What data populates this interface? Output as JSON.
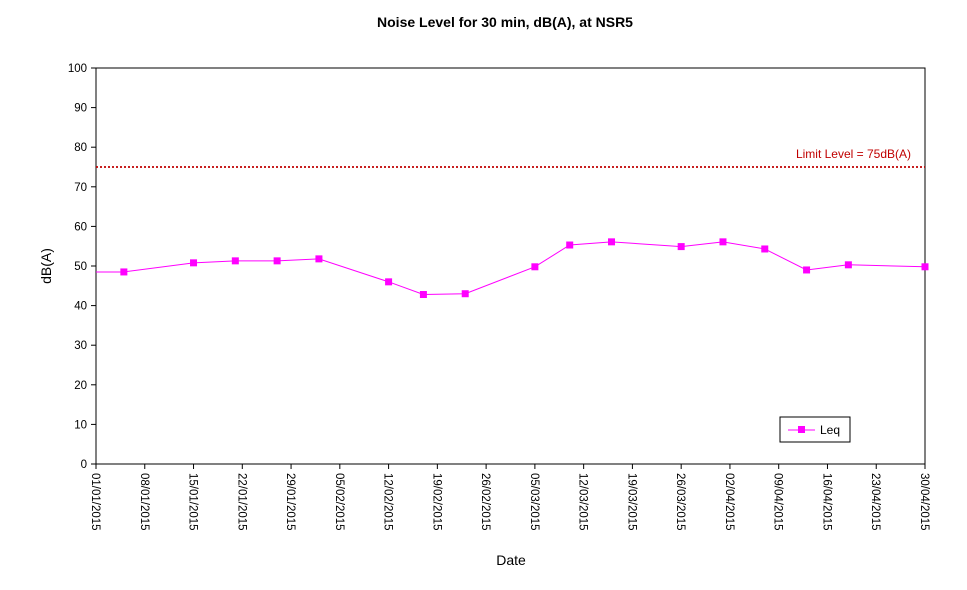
{
  "chart_data": {
    "type": "line",
    "title": "Noise Level for 30 min, dB(A), at NSR5",
    "xlabel": "Date",
    "ylabel": "dB(A)",
    "ylim": [
      0,
      100
    ],
    "yticks": [
      0,
      10,
      20,
      30,
      40,
      50,
      60,
      70,
      80,
      90,
      100
    ],
    "xlim": [
      "01/01/2015",
      "30/04/2015"
    ],
    "xticks": [
      "01/01/2015",
      "08/01/2015",
      "15/01/2015",
      "22/01/2015",
      "29/01/2015",
      "05/02/2015",
      "12/02/2015",
      "19/02/2015",
      "26/02/2015",
      "05/03/2015",
      "12/03/2015",
      "19/03/2015",
      "26/03/2015",
      "02/04/2015",
      "09/04/2015",
      "16/04/2015",
      "23/04/2015",
      "30/04/2015"
    ],
    "grid": false,
    "limit_line": {
      "value": 75,
      "label": "Limit Level  = 75dB(A)",
      "color": "#c00000"
    },
    "series": [
      {
        "name": "Leq",
        "color": "#ff00ff",
        "points": [
          {
            "x": "01/01/2015",
            "y": 48.5,
            "marker": false
          },
          {
            "x": "05/01/2015",
            "y": 48.5
          },
          {
            "x": "15/01/2015",
            "y": 50.8
          },
          {
            "x": "21/01/2015",
            "y": 51.3
          },
          {
            "x": "27/01/2015",
            "y": 51.3
          },
          {
            "x": "02/02/2015",
            "y": 51.8
          },
          {
            "x": "12/02/2015",
            "y": 46.0
          },
          {
            "x": "17/02/2015",
            "y": 42.8
          },
          {
            "x": "23/02/2015",
            "y": 43.0
          },
          {
            "x": "05/03/2015",
            "y": 49.8
          },
          {
            "x": "10/03/2015",
            "y": 55.3
          },
          {
            "x": "16/03/2015",
            "y": 56.1
          },
          {
            "x": "26/03/2015",
            "y": 54.9
          },
          {
            "x": "01/04/2015",
            "y": 56.1
          },
          {
            "x": "07/04/2015",
            "y": 54.3
          },
          {
            "x": "13/04/2015",
            "y": 49.0
          },
          {
            "x": "19/04/2015",
            "y": 50.3
          },
          {
            "x": "30/04/2015",
            "y": 49.8
          }
        ]
      }
    ],
    "legend": {
      "position": "bottom-right"
    }
  }
}
